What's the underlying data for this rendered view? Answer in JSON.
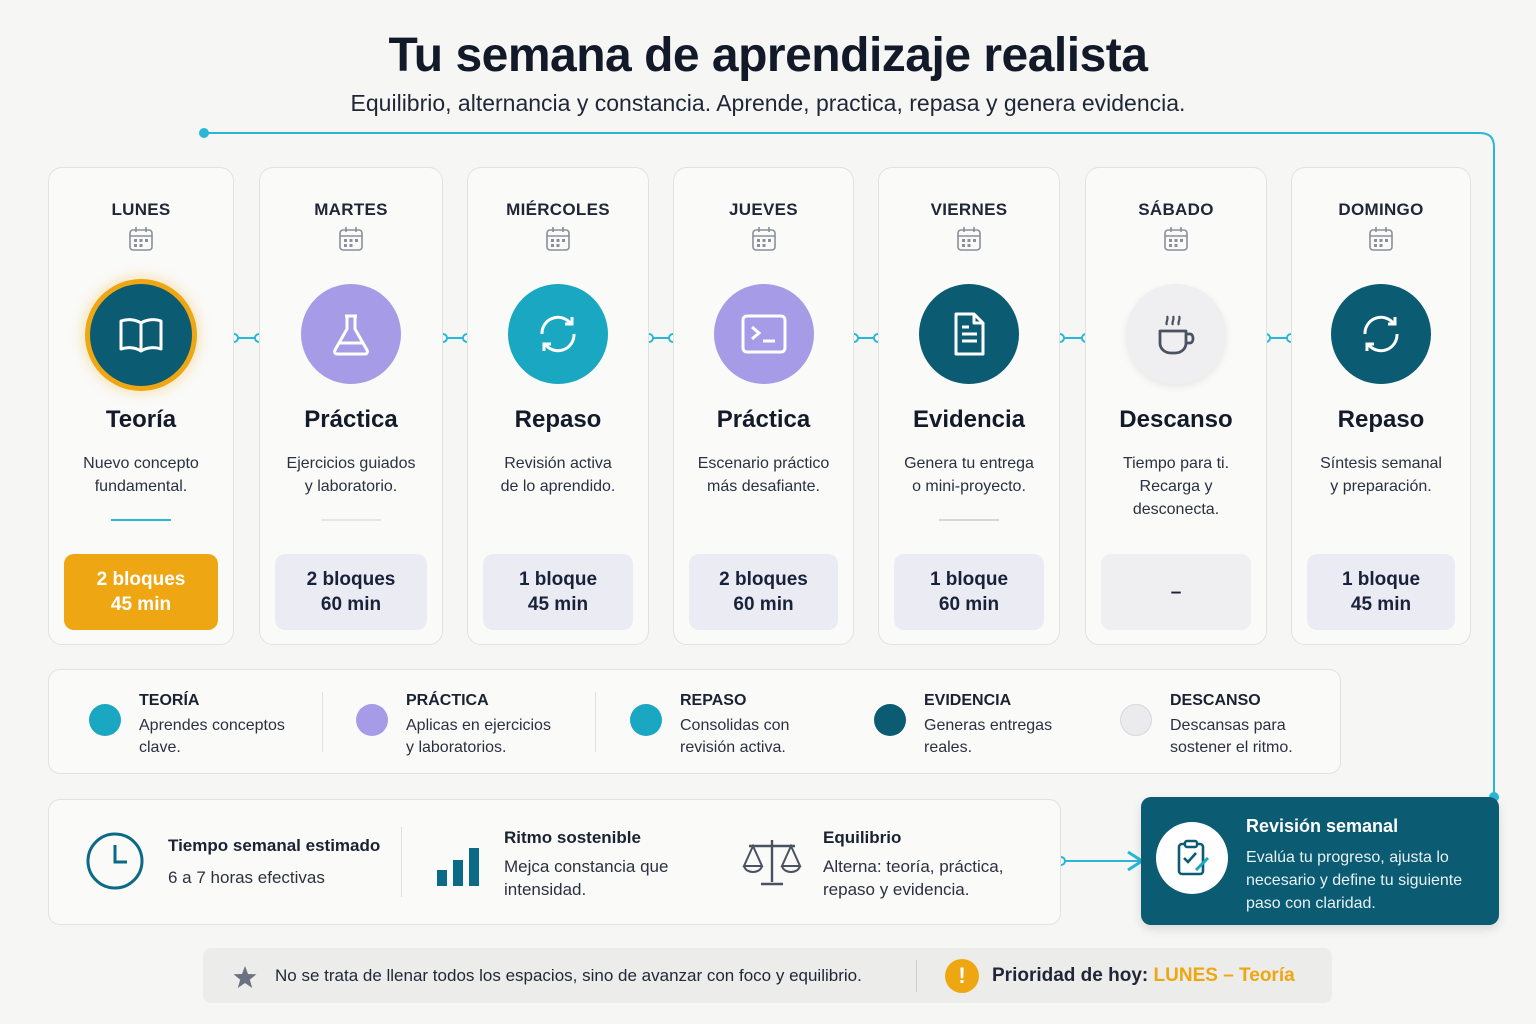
{
  "header": {
    "title": "Tu semana de aprendizaje realista",
    "subtitle": "Equilibrio, alternancia y constancia. Aprende, practica, repasa y genera evidencia."
  },
  "colors": {
    "teoria": "#0b5b73",
    "practica": "#a69be6",
    "repaso": "#1aa7c1",
    "evidencia": "#0b5b73",
    "descanso": "#ebebee",
    "accent": "#eea612",
    "connector": "#29b7d8"
  },
  "days": [
    {
      "name": "LUNES",
      "icon": "book-icon",
      "activity": "Teoría",
      "desc1": "Nuevo concepto",
      "desc2": "fundamental.",
      "blocks": "2 bloques",
      "time": "45 min",
      "highlight": true
    },
    {
      "name": "MARTES",
      "icon": "flask-icon",
      "activity": "Práctica",
      "desc1": "Ejercicios guiados",
      "desc2": "y laboratorio.",
      "blocks": "2 bloques",
      "time": "60 min"
    },
    {
      "name": "MIÉRCOLES",
      "icon": "refresh-icon",
      "activity": "Repaso",
      "desc1": "Revisión activa",
      "desc2": "de lo aprendido.",
      "blocks": "1 bloque",
      "time": "45 min"
    },
    {
      "name": "JUEVES",
      "icon": "terminal-icon",
      "activity": "Práctica",
      "desc1": "Escenario práctico",
      "desc2": "más desafiante.",
      "blocks": "2 bloques",
      "time": "60 min"
    },
    {
      "name": "VIERNES",
      "icon": "document-icon",
      "activity": "Evidencia",
      "desc1": "Genera tu entrega",
      "desc2": "o mini-proyecto.",
      "blocks": "1 bloque",
      "time": "60 min"
    },
    {
      "name": "SÁBADO",
      "icon": "coffee-icon",
      "activity": "Descanso",
      "desc1": "Tiempo para ti.",
      "desc2": "Recarga y desconecta.",
      "blocks": "–",
      "time": ""
    },
    {
      "name": "DOMINGO",
      "icon": "refresh-icon",
      "activity": "Repaso",
      "desc1": "Síntesis semanal",
      "desc2": "y preparación.",
      "blocks": "1 bloque",
      "time": "45 min"
    }
  ],
  "legend": [
    {
      "title": "TEORÍA",
      "line1": "Aprendes conceptos",
      "line2": "clave."
    },
    {
      "title": "PRÁCTICA",
      "line1": "Aplicas en ejercicios",
      "line2": "y laboratorios."
    },
    {
      "title": "REPASO",
      "line1": "Consolidas con",
      "line2": "revisión activa."
    },
    {
      "title": "EVIDENCIA",
      "line1": "Generas entregas",
      "line2": "reales."
    },
    {
      "title": "DESCANSO",
      "line1": "Descansas para",
      "line2": "sostener el ritmo."
    }
  ],
  "stats": {
    "time_title": "Tiempo semanal estimado",
    "time_value": "6 a 7 horas efectivas",
    "rhythm_title": "Ritmo sostenible",
    "rhythm_line1": "Mejca constancia que",
    "rhythm_line2": "intensidad.",
    "balance_title": "Equilibrio",
    "balance_line1": "Alterna: teoría, práctica,",
    "balance_line2": "repaso y evidencia."
  },
  "review": {
    "title": "Revisión semanal",
    "text": "Evalúa tu progreso, ajusta lo necesario y define tu siguiente paso con claridad."
  },
  "footer": {
    "note": "No se trata de llenar todos los espacios, sino de avanzar con foco y equilibrio.",
    "priority_label": "Prioridad de hoy:",
    "priority_value": "LUNES – Teoría",
    "warn_symbol": "!"
  }
}
